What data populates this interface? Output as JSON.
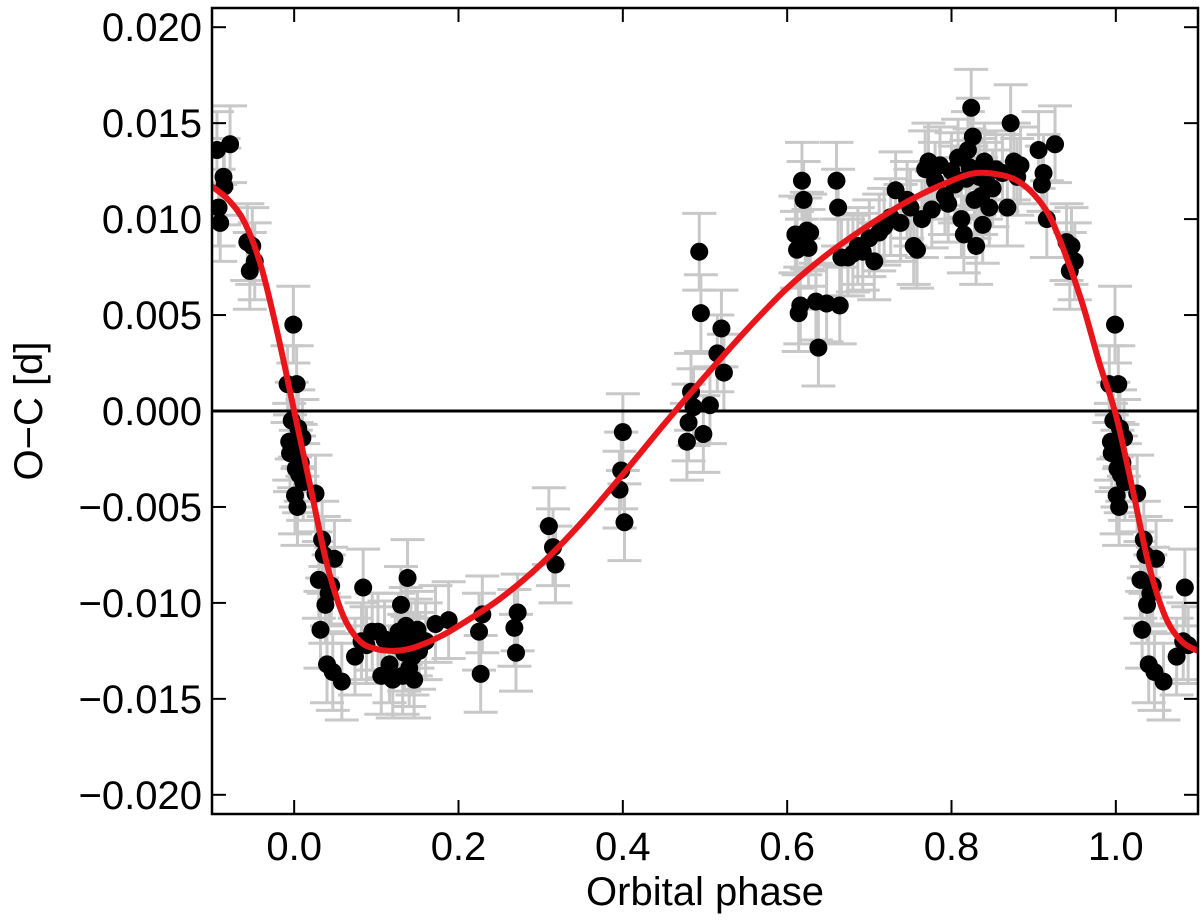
{
  "chart_data": {
    "type": "scatter",
    "xlabel": "Orbital phase",
    "ylabel": "O−C [d]",
    "xlim": [
      -0.1,
      1.1
    ],
    "ylim": [
      -0.021,
      0.021
    ],
    "x_ticks": [
      0.0,
      0.2,
      0.4,
      0.6,
      0.8,
      1.0
    ],
    "x_tick_labels": [
      "0.0",
      "0.2",
      "0.4",
      "0.6",
      "0.8",
      "1.0"
    ],
    "y_ticks": [
      -0.02,
      -0.015,
      -0.01,
      -0.005,
      0.0,
      0.005,
      0.01,
      0.015,
      0.02
    ],
    "y_tick_labels": [
      "−0.020",
      "−0.015",
      "−0.010",
      "−0.005",
      "0.000",
      "0.005",
      "0.010",
      "0.015",
      "0.020"
    ],
    "grid": false,
    "reference_line_y": 0.0,
    "colors": {
      "points": "#000000",
      "error_bars": "#c8c8c8",
      "model": "#e8161b",
      "reference_line": "#000000"
    },
    "series": [
      {
        "kind": "points_with_errorbars",
        "yerr": 0.002,
        "xerr": 0.0,
        "points": [
          [
            -0.094,
            0.0136
          ],
          [
            -0.092,
            0.0106
          ],
          [
            -0.09,
            0.0098
          ],
          [
            -0.086,
            0.0122
          ],
          [
            -0.085,
            0.0117
          ],
          [
            -0.078,
            0.0139
          ],
          [
            -0.057,
            0.0088
          ],
          [
            -0.054,
            0.0073
          ],
          [
            -0.051,
            0.0086
          ],
          [
            -0.048,
            0.0078
          ],
          [
            -0.008,
            0.0014
          ],
          [
            -0.006,
            -0.0016
          ],
          [
            -0.005,
            -0.0022
          ],
          [
            -0.003,
            -0.0005
          ],
          [
            -0.001,
            0.0045
          ],
          [
            0.0,
            -0.002
          ],
          [
            0.001,
            -0.0044
          ],
          [
            0.002,
            -0.003
          ],
          [
            0.003,
            0.0014
          ],
          [
            0.004,
            -0.005
          ],
          [
            0.005,
            -0.0009
          ],
          [
            0.006,
            -0.0033
          ],
          [
            0.008,
            -0.0027
          ],
          [
            0.01,
            -0.0014
          ],
          [
            0.011,
            -0.0037
          ],
          [
            0.026,
            -0.0043
          ],
          [
            0.03,
            -0.0088
          ],
          [
            0.032,
            -0.0114
          ],
          [
            0.034,
            -0.0067
          ],
          [
            0.036,
            -0.0075
          ],
          [
            0.038,
            -0.0101
          ],
          [
            0.04,
            -0.0132
          ],
          [
            0.042,
            -0.0095
          ],
          [
            0.045,
            -0.0091
          ],
          [
            0.047,
            -0.0136
          ],
          [
            0.049,
            -0.0077
          ],
          [
            0.058,
            -0.0141
          ],
          [
            0.074,
            -0.0128
          ],
          [
            0.082,
            -0.012
          ],
          [
            0.084,
            -0.0092
          ],
          [
            0.088,
            -0.0122
          ],
          [
            0.095,
            -0.0115
          ],
          [
            0.102,
            -0.0115
          ],
          [
            0.106,
            -0.0138
          ],
          [
            0.11,
            -0.0119
          ],
          [
            0.116,
            -0.0132
          ],
          [
            0.12,
            -0.014
          ],
          [
            0.123,
            -0.0122
          ],
          [
            0.127,
            -0.0115
          ],
          [
            0.13,
            -0.0101
          ],
          [
            0.132,
            -0.0138
          ],
          [
            0.134,
            -0.0126
          ],
          [
            0.136,
            -0.0112
          ],
          [
            0.138,
            -0.0087
          ],
          [
            0.14,
            -0.0134
          ],
          [
            0.142,
            -0.012
          ],
          [
            0.144,
            -0.0128
          ],
          [
            0.146,
            -0.014
          ],
          [
            0.148,
            -0.0118
          ],
          [
            0.15,
            -0.0114
          ],
          [
            0.152,
            -0.0125
          ],
          [
            0.16,
            -0.012
          ],
          [
            0.172,
            -0.0111
          ],
          [
            0.188,
            -0.0109
          ],
          [
            0.225,
            -0.0115
          ],
          [
            0.227,
            -0.0137
          ],
          [
            0.229,
            -0.0106
          ],
          [
            0.268,
            -0.0113
          ],
          [
            0.27,
            -0.0126
          ],
          [
            0.272,
            -0.0105
          ],
          [
            0.31,
            -0.006
          ],
          [
            0.315,
            -0.0071
          ],
          [
            0.318,
            -0.008
          ],
          [
            0.396,
            -0.0041
          ],
          [
            0.398,
            -0.0031
          ],
          [
            0.4,
            -0.0011
          ],
          [
            0.402,
            -0.0058
          ],
          [
            0.478,
            -0.0016
          ],
          [
            0.48,
            -0.0006
          ],
          [
            0.483,
            0.001
          ],
          [
            0.486,
            0.0002
          ],
          [
            0.493,
            0.0083
          ],
          [
            0.495,
            0.0051
          ],
          [
            0.498,
            -0.0012
          ],
          [
            0.506,
            0.0003
          ],
          [
            0.515,
            0.003
          ],
          [
            0.52,
            0.0043
          ],
          [
            0.523,
            0.002
          ],
          [
            0.61,
            0.0092
          ],
          [
            0.612,
            0.0084
          ],
          [
            0.614,
            0.0051
          ],
          [
            0.616,
            0.0055
          ],
          [
            0.618,
            0.012
          ],
          [
            0.62,
            0.011
          ],
          [
            0.622,
            0.0091
          ],
          [
            0.624,
            0.0094
          ],
          [
            0.626,
            0.0085
          ],
          [
            0.628,
            0.0093
          ],
          [
            0.635,
            0.0057
          ],
          [
            0.638,
            0.0033
          ],
          [
            0.648,
            0.0056
          ],
          [
            0.66,
            0.012
          ],
          [
            0.662,
            0.0106
          ],
          [
            0.664,
            0.0055
          ],
          [
            0.666,
            0.008
          ],
          [
            0.674,
            0.008
          ],
          [
            0.68,
            0.0082
          ],
          [
            0.686,
            0.0086
          ],
          [
            0.692,
            0.0083
          ],
          [
            0.7,
            0.009
          ],
          [
            0.706,
            0.0078
          ],
          [
            0.712,
            0.0093
          ],
          [
            0.718,
            0.0096
          ],
          [
            0.726,
            0.0101
          ],
          [
            0.732,
            0.0115
          ],
          [
            0.738,
            0.0098
          ],
          [
            0.746,
            0.011
          ],
          [
            0.75,
            0.0106
          ],
          [
            0.754,
            0.0086
          ],
          [
            0.758,
            0.0084
          ],
          [
            0.764,
            0.01
          ],
          [
            0.768,
            0.0126
          ],
          [
            0.772,
            0.013
          ],
          [
            0.776,
            0.0105
          ],
          [
            0.78,
            0.012
          ],
          [
            0.786,
            0.0128
          ],
          [
            0.792,
            0.0112
          ],
          [
            0.796,
            0.0108
          ],
          [
            0.8,
            0.0125
          ],
          [
            0.804,
            0.0118
          ],
          [
            0.808,
            0.0132
          ],
          [
            0.812,
            0.01
          ],
          [
            0.815,
            0.0092
          ],
          [
            0.818,
            0.0121
          ],
          [
            0.82,
            0.0136
          ],
          [
            0.822,
            0.0127
          ],
          [
            0.824,
            0.0158
          ],
          [
            0.826,
            0.0143
          ],
          [
            0.828,
            0.011
          ],
          [
            0.83,
            0.0086
          ],
          [
            0.832,
            0.0125
          ],
          [
            0.834,
            0.0122
          ],
          [
            0.836,
            0.0112
          ],
          [
            0.838,
            0.0097
          ],
          [
            0.84,
            0.013
          ],
          [
            0.842,
            0.012
          ],
          [
            0.846,
            0.0106
          ],
          [
            0.85,
            0.0116
          ],
          [
            0.854,
            0.0126
          ],
          [
            0.862,
            0.0124
          ],
          [
            0.868,
            0.0106
          ],
          [
            0.872,
            0.015
          ],
          [
            0.876,
            0.013
          ],
          [
            0.88,
            0.0122
          ],
          [
            0.884,
            0.0128
          ],
          [
            0.906,
            0.0136
          ],
          [
            0.91,
            0.0118
          ],
          [
            0.912,
            0.0124
          ],
          [
            0.916,
            0.01
          ],
          [
            0.926,
            0.0139
          ],
          [
            0.94,
            0.0088
          ],
          [
            0.944,
            0.0073
          ],
          [
            0.946,
            0.0086
          ],
          [
            0.95,
            0.0078
          ],
          [
            0.992,
            0.0014
          ],
          [
            0.994,
            -0.0016
          ],
          [
            0.995,
            -0.0022
          ],
          [
            0.997,
            -0.0005
          ],
          [
            0.999,
            0.0045
          ],
          [
            1.0,
            -0.002
          ],
          [
            1.001,
            -0.0044
          ],
          [
            1.002,
            -0.003
          ],
          [
            1.003,
            0.0014
          ],
          [
            1.004,
            -0.005
          ],
          [
            1.005,
            -0.0009
          ],
          [
            1.006,
            -0.0033
          ],
          [
            1.008,
            -0.0027
          ],
          [
            1.01,
            -0.0014
          ],
          [
            1.011,
            -0.0037
          ],
          [
            1.026,
            -0.0043
          ],
          [
            1.03,
            -0.0088
          ],
          [
            1.032,
            -0.0114
          ],
          [
            1.034,
            -0.0067
          ],
          [
            1.036,
            -0.0075
          ],
          [
            1.038,
            -0.0101
          ],
          [
            1.04,
            -0.0132
          ],
          [
            1.042,
            -0.0095
          ],
          [
            1.045,
            -0.0091
          ],
          [
            1.047,
            -0.0136
          ],
          [
            1.049,
            -0.0077
          ],
          [
            1.058,
            -0.0141
          ],
          [
            1.074,
            -0.0128
          ],
          [
            1.082,
            -0.012
          ],
          [
            1.084,
            -0.0092
          ],
          [
            1.088,
            -0.0122
          ]
        ]
      },
      {
        "kind": "model_curve",
        "x": [
          -0.1,
          -0.08,
          -0.06,
          -0.04,
          -0.02,
          0.0,
          0.02,
          0.04,
          0.06,
          0.08,
          0.1,
          0.12,
          0.14,
          0.16,
          0.18,
          0.2,
          0.25,
          0.3,
          0.35,
          0.4,
          0.45,
          0.5,
          0.55,
          0.6,
          0.65,
          0.7,
          0.75,
          0.8,
          0.83,
          0.86,
          0.88,
          0.9,
          0.92,
          0.94,
          0.96,
          0.98,
          1.0,
          1.02,
          1.04,
          1.06,
          1.08,
          1.1
        ],
        "y": [
          0.0117,
          0.011,
          0.0098,
          0.0075,
          0.004,
          0.0,
          -0.004,
          -0.008,
          -0.0107,
          -0.012,
          -0.0124,
          -0.0125,
          -0.0124,
          -0.0121,
          -0.0117,
          -0.0112,
          -0.0098,
          -0.008,
          -0.0058,
          -0.0033,
          -0.0007,
          0.0018,
          0.0042,
          0.0064,
          0.0082,
          0.0097,
          0.011,
          0.012,
          0.0124,
          0.0123,
          0.012,
          0.0113,
          0.0101,
          0.008,
          0.0055,
          0.0025,
          -0.0002,
          -0.004,
          -0.008,
          -0.0107,
          -0.012,
          -0.0125
        ]
      }
    ]
  }
}
